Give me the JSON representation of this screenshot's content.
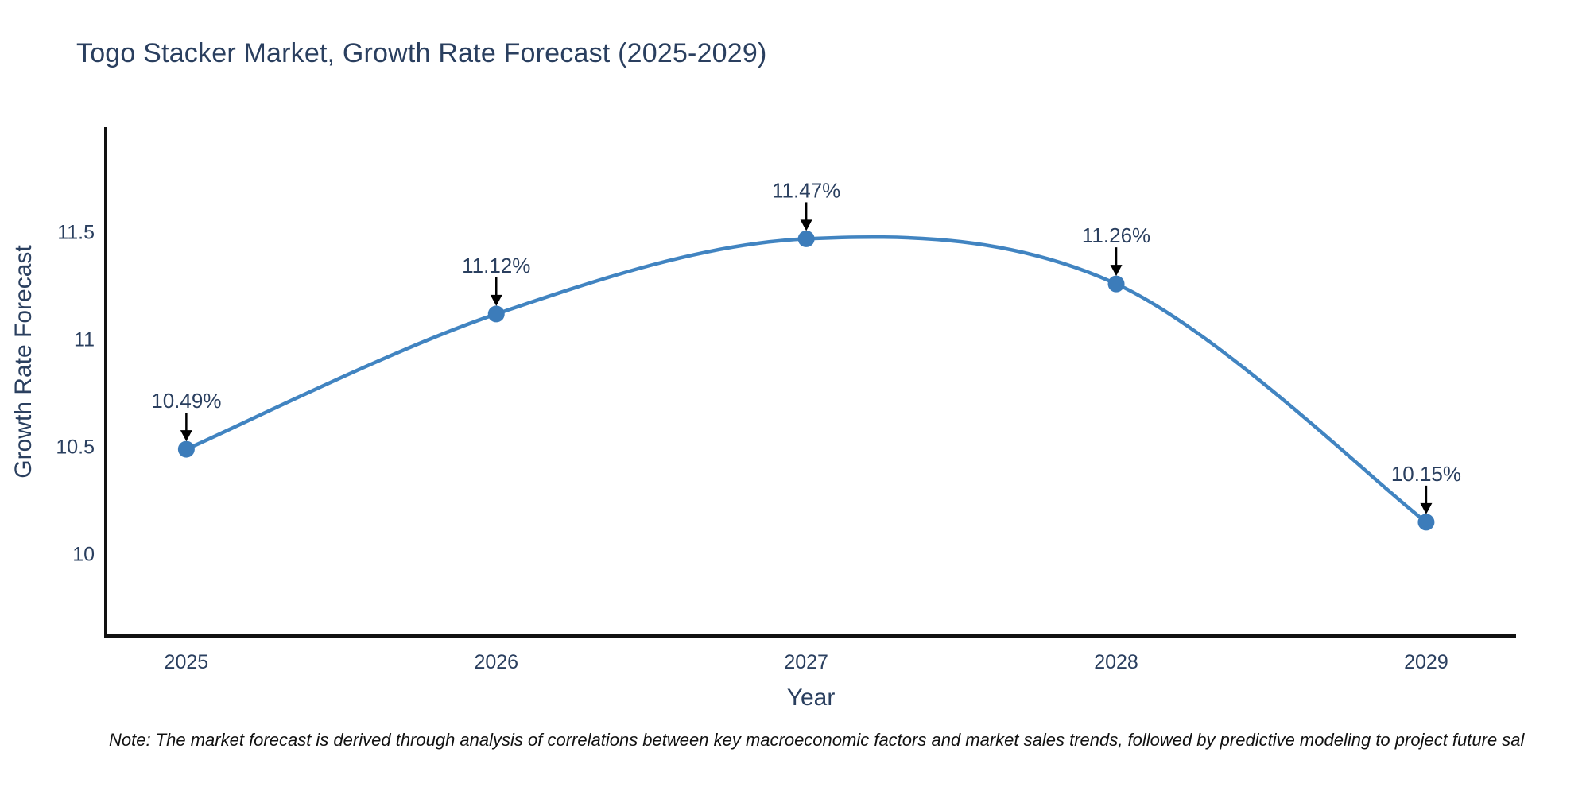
{
  "figure": {
    "note": "Note: The market forecast is derived through analysis of correlations between key macroeconomic factors and market sales trends, followed by predictive modeling to project future sal",
    "note_color": "#111111",
    "background": "#ffffff"
  },
  "chart_data": {
    "type": "line",
    "title": "Togo Stacker Market, Growth Rate Forecast (2025-2029)",
    "xlabel": "Year",
    "ylabel": "Growth Rate Forecast",
    "x": [
      2025,
      2026,
      2027,
      2028,
      2029
    ],
    "series": [
      {
        "name": "Growth Rate Forecast",
        "values": [
          10.49,
          11.12,
          11.47,
          11.26,
          10.15
        ]
      }
    ],
    "point_labels": [
      "10.49%",
      "11.12%",
      "11.47%",
      "11.26%",
      "10.15%"
    ],
    "xticks": [
      2025,
      2026,
      2027,
      2028,
      2029
    ],
    "yticks": [
      10,
      10.5,
      11,
      11.5
    ],
    "xlim": [
      2024.74,
      2029.29
    ],
    "ylim": [
      9.62,
      11.99
    ],
    "grid": false,
    "legend_position": "none",
    "line_shape": "spline",
    "line_color": "#4184c1",
    "marker_color": "#3c7cba",
    "annotation_arrow_color": "#000000",
    "axis_color": "#111111",
    "text_color": "#2a3f5f"
  }
}
